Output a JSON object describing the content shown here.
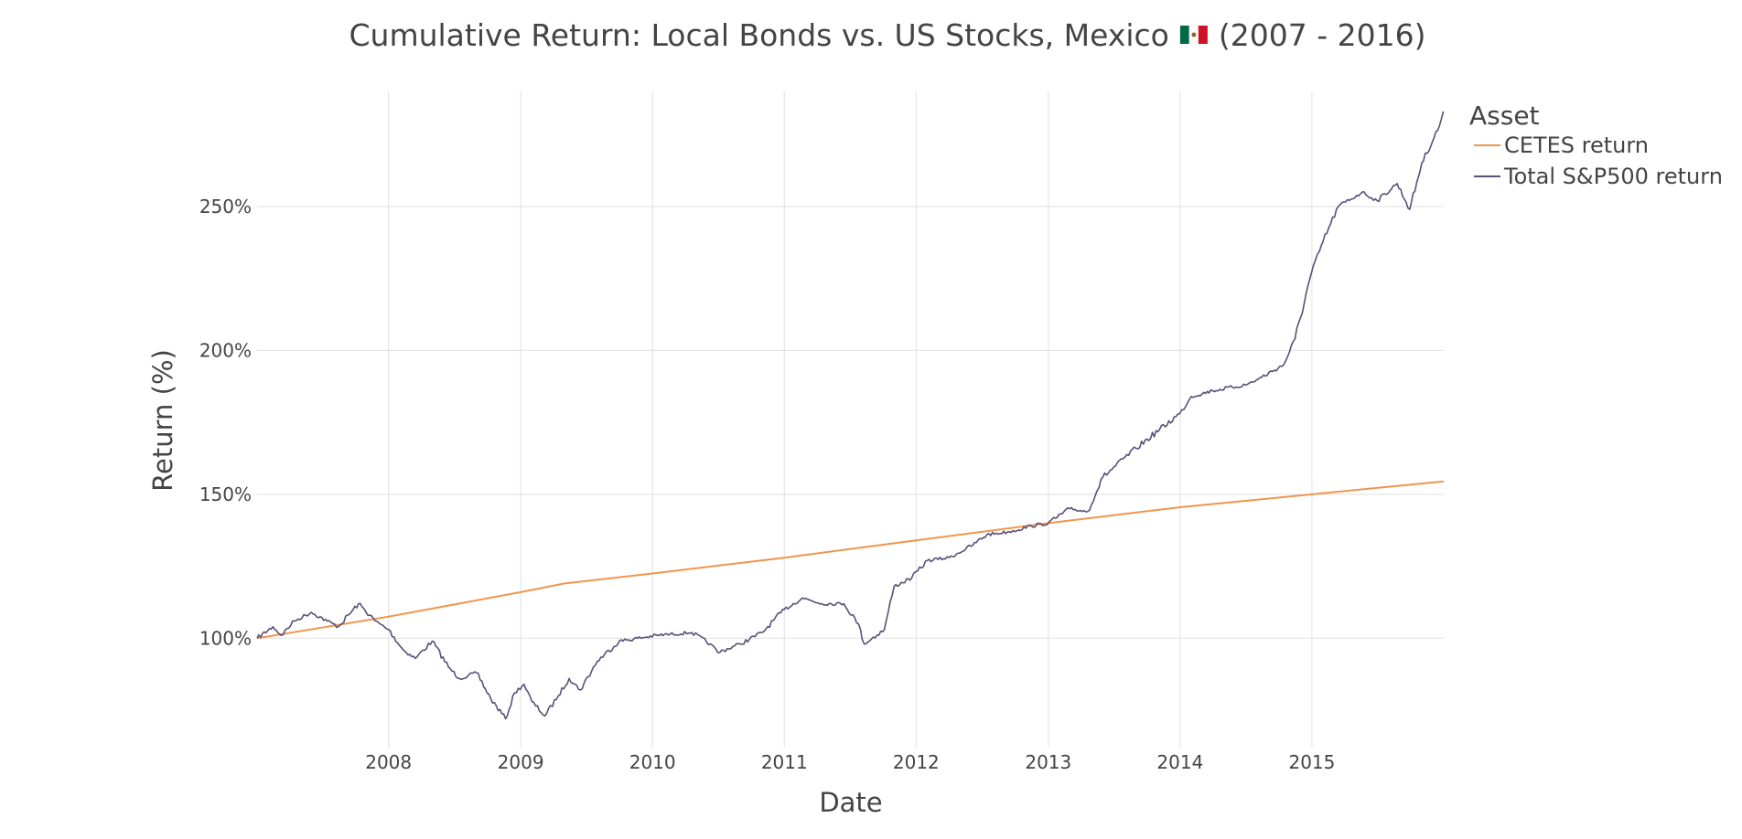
{
  "chart_data": {
    "type": "line",
    "title": "Cumulative Return: Local Bonds vs. US Stocks, Mexico",
    "title_flag_icon": "mexico-flag-icon",
    "title_suffix": "(2007 - 2016)",
    "xlabel": "Date",
    "ylabel": "Return (%)",
    "x_range": [
      "2007-01-02",
      "2016-01-01"
    ],
    "ylim": [
      62,
      290
    ],
    "x_tick_labels": [
      "2008",
      "2009",
      "2010",
      "2011",
      "2012",
      "2013",
      "2014",
      "2015"
    ],
    "y_ticks": [
      100,
      150,
      200,
      250
    ],
    "y_tick_labels": [
      "100%",
      "150%",
      "200%",
      "250%"
    ],
    "grid": true,
    "legend": {
      "title": "Asset",
      "position": "top-right"
    },
    "series": [
      {
        "name": "CETES return",
        "color": "#f0954d",
        "x": [
          "2007-01-02",
          "2008-01-01",
          "2009-01-01",
          "2009-05-01",
          "2010-01-01",
          "2011-01-01",
          "2012-01-01",
          "2013-01-01",
          "2014-01-01",
          "2015-01-01",
          "2016-01-01"
        ],
        "y": [
          100,
          107.5,
          116,
          119,
          122.5,
          128,
          134,
          140,
          145.5,
          150,
          154.5
        ]
      },
      {
        "name": "Total S&P500 return",
        "color": "#5b4f78",
        "x": [
          "2007-01-02",
          "2007-02-15",
          "2007-03-10",
          "2007-04-15",
          "2007-06-01",
          "2007-07-15",
          "2007-08-15",
          "2007-10-10",
          "2007-11-25",
          "2008-01-01",
          "2008-02-10",
          "2008-03-15",
          "2008-05-01",
          "2008-06-15",
          "2008-07-15",
          "2008-09-01",
          "2008-10-10",
          "2008-11-20",
          "2008-12-15",
          "2009-01-10",
          "2009-02-01",
          "2009-03-09",
          "2009-04-15",
          "2009-05-15",
          "2009-06-15",
          "2009-08-01",
          "2009-10-01",
          "2010-01-15",
          "2010-04-20",
          "2010-06-10",
          "2010-07-01",
          "2010-09-01",
          "2010-11-01",
          "2011-01-01",
          "2011-02-20",
          "2011-04-15",
          "2011-06-15",
          "2011-07-25",
          "2011-08-10",
          "2011-10-05",
          "2011-11-01",
          "2011-12-20",
          "2012-02-01",
          "2012-04-01",
          "2012-06-01",
          "2012-07-15",
          "2012-09-15",
          "2012-11-15",
          "2013-01-01",
          "2013-03-01",
          "2013-04-20",
          "2013-06-01",
          "2013-09-01",
          "2013-12-31",
          "2014-02-01",
          "2014-04-01",
          "2014-07-01",
          "2014-08-05",
          "2014-10-15",
          "2014-11-15",
          "2014-12-31",
          "2015-02-01",
          "2015-03-15",
          "2015-05-20",
          "2015-07-01",
          "2015-08-25",
          "2015-09-29",
          "2015-11-01",
          "2015-12-20",
          "2015-12-31"
        ],
        "y": [
          100,
          104,
          101,
          106,
          109,
          106,
          104,
          112,
          106,
          103,
          96,
          93,
          99,
          90,
          86,
          88,
          79,
          72,
          81,
          84,
          78,
          73,
          80,
          86,
          82,
          92,
          99,
          101,
          102,
          98,
          95,
          98,
          102,
          110,
          114,
          112,
          112,
          105,
          98,
          103,
          118,
          121,
          127,
          128,
          132,
          136,
          137,
          139,
          140,
          145,
          144,
          156,
          166,
          178,
          184,
          186,
          188,
          190,
          195,
          204,
          227,
          238,
          250,
          255,
          252,
          258,
          249,
          265,
          278,
          283
        ]
      }
    ]
  }
}
